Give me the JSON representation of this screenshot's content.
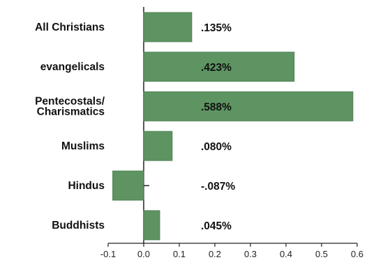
{
  "chart_data": {
    "type": "bar",
    "orientation": "horizontal",
    "categories": [
      "All Christians",
      "evangelicals",
      "Pentecostals/\nCharismatics",
      "Muslims",
      "Hindus",
      "Buddhists"
    ],
    "values": [
      0.135,
      0.423,
      0.588,
      0.08,
      -0.087,
      0.045
    ],
    "value_labels": [
      ".135%",
      ".423%",
      ".588%",
      ".080%",
      "-.087%",
      ".045%"
    ],
    "x_ticks": [
      -0.1,
      0.0,
      0.1,
      0.2,
      0.3,
      0.4,
      0.5,
      0.6
    ],
    "x_tick_labels": [
      "-0.1",
      "0.0",
      "0.1",
      "0.2",
      "0.3",
      "0.4",
      "0.5",
      "0.6"
    ],
    "xlim": [
      -0.1,
      0.6
    ],
    "grid": false,
    "colors": {
      "bar": "#5e9462",
      "bar_stroke": "#4c7f50",
      "axis": "#222222"
    }
  }
}
